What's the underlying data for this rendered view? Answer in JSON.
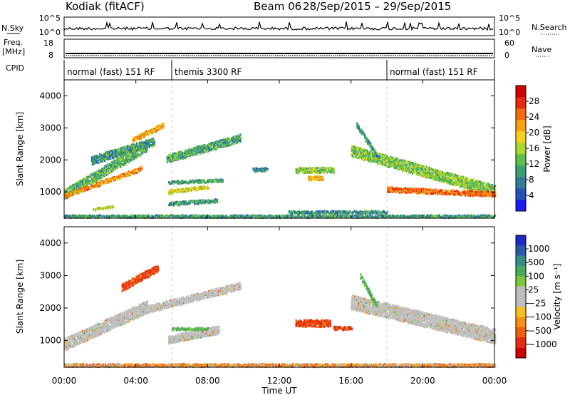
{
  "header": {
    "station": "Kodiak (fitACF)",
    "beam": "Beam 06",
    "date_range": "28/Sep/2015 – 29/Sep/2015"
  },
  "top_panels": {
    "nsky": {
      "label": "N.Sky",
      "tick_top": "10^5",
      "tick_bottom": "10^0"
    },
    "nsearch": {
      "label": "N.Search",
      "tick_top": "10^5",
      "tick_bottom": "10^0"
    },
    "freq": {
      "label_line1": "Freq.",
      "label_line2": "[MHz]",
      "tick_top": "18",
      "tick_bottom": "8"
    },
    "nave": {
      "label": "Nave",
      "tick_top": "60",
      "tick_bottom": "0"
    },
    "cpid": {
      "label": "CPID",
      "segments": [
        {
          "label": "normal (fast) 151 RF",
          "start_hour": 0,
          "end_hour": 6
        },
        {
          "label": "themis 3300 RF",
          "start_hour": 6,
          "end_hour": 18
        },
        {
          "label": "normal (fast) 151 RF",
          "start_hour": 18,
          "end_hour": 24
        }
      ]
    }
  },
  "power_colorbar": {
    "label": "Power [dB]",
    "ticks": [
      "4",
      "8",
      "12",
      "16",
      "20",
      "24",
      "28"
    ],
    "colors": [
      "#1c1cf0",
      "#2452b8",
      "#347c96",
      "#3aa070",
      "#5ec04a",
      "#a8d830",
      "#f4d21c",
      "#f8a010",
      "#f46a10",
      "#e82810",
      "#d00000"
    ]
  },
  "velocity_colorbar": {
    "label": "Velocity [m s⁻¹]",
    "ticks": [
      "1000",
      "500",
      "100",
      "25",
      "−25",
      "−100",
      "−500",
      "−1000"
    ],
    "colors": [
      "#1c28c8",
      "#2858a8",
      "#388c8c",
      "#4caa5c",
      "#7cc83c",
      "#bebebe",
      "#bebebe",
      "#f8c020",
      "#f49018",
      "#f06010",
      "#e02c10",
      "#cc0000"
    ]
  },
  "chart_data": [
    {
      "type": "heatmap",
      "title": "",
      "xlabel": "",
      "ylabel": "Slant Range [km]",
      "xlim": [
        0,
        24
      ],
      "ylim": [
        180,
        4500
      ],
      "yticks": [
        1000,
        2000,
        3000,
        4000
      ],
      "scatter_regions": [
        {
          "x0": 0.0,
          "x1": 4.6,
          "r_start": 950,
          "r_end": 2450,
          "width": 320,
          "value": 12
        },
        {
          "x0": 0.0,
          "x1": 4.3,
          "r_start": 900,
          "r_end": 1750,
          "width": 140,
          "value": 22
        },
        {
          "x0": 1.5,
          "x1": 5.0,
          "r_start": 2000,
          "r_end": 2600,
          "width": 260,
          "value": 10
        },
        {
          "x0": 3.8,
          "x1": 5.5,
          "r_start": 2650,
          "r_end": 3100,
          "width": 160,
          "value": 21
        },
        {
          "x0": 5.7,
          "x1": 9.8,
          "r_start": 2050,
          "r_end": 2700,
          "width": 250,
          "value": 11
        },
        {
          "x0": 5.8,
          "x1": 8.0,
          "r_start": 1020,
          "r_end": 1180,
          "width": 120,
          "value": 18
        },
        {
          "x0": 5.8,
          "x1": 8.8,
          "r_start": 1320,
          "r_end": 1380,
          "width": 100,
          "value": 11
        },
        {
          "x0": 5.8,
          "x1": 8.5,
          "r_start": 650,
          "r_end": 750,
          "width": 120,
          "value": 10
        },
        {
          "x0": 1.6,
          "x1": 2.7,
          "r_start": 480,
          "r_end": 560,
          "width": 70,
          "value": 18
        },
        {
          "x0": 10.5,
          "x1": 11.3,
          "r_start": 1720,
          "r_end": 1720,
          "width": 120,
          "value": 8
        },
        {
          "x0": 12.9,
          "x1": 15.0,
          "r_start": 1700,
          "r_end": 1700,
          "width": 180,
          "value": 14
        },
        {
          "x0": 13.6,
          "x1": 14.4,
          "r_start": 1450,
          "r_end": 1450,
          "width": 140,
          "value": 21
        },
        {
          "x0": 12.5,
          "x1": 18.0,
          "r_start": 390,
          "r_end": 390,
          "width": 90,
          "value": 9
        },
        {
          "x0": 16.0,
          "x1": 24.0,
          "r_start": 2300,
          "r_end": 1050,
          "width": 350,
          "value": 14
        },
        {
          "x0": 18.0,
          "x1": 24.0,
          "r_start": 1100,
          "r_end": 950,
          "width": 160,
          "value": 25
        },
        {
          "x0": 16.3,
          "x1": 17.5,
          "r_start": 3100,
          "r_end": 2100,
          "width": 150,
          "value": 10
        },
        {
          "x0": 0.0,
          "x1": 24.0,
          "r_start": 260,
          "r_end": 260,
          "width": 90,
          "value": 10
        }
      ]
    },
    {
      "type": "heatmap",
      "title": "",
      "xlabel": "Time UT",
      "ylabel": "Slant Range [km]",
      "xlim": [
        0,
        24
      ],
      "ylim": [
        180,
        4500
      ],
      "yticks": [
        1000,
        2000,
        3000,
        4000
      ],
      "xticks": [
        "00:00",
        "04:00",
        "08:00",
        "12:00",
        "16:00",
        "20:00",
        "00:00"
      ],
      "scatter_regions": [
        {
          "x0": 0.0,
          "x1": 4.6,
          "r_start": 900,
          "r_end": 2050,
          "width": 380,
          "value": 0
        },
        {
          "x0": 3.2,
          "x1": 5.2,
          "r_start": 2650,
          "r_end": 3250,
          "width": 230,
          "value": -300
        },
        {
          "x0": 4.4,
          "x1": 9.8,
          "r_start": 1950,
          "r_end": 2700,
          "width": 230,
          "value": 0
        },
        {
          "x0": 5.8,
          "x1": 8.6,
          "r_start": 1050,
          "r_end": 1350,
          "width": 250,
          "value": 0
        },
        {
          "x0": 6.0,
          "x1": 8.0,
          "r_start": 1380,
          "r_end": 1380,
          "width": 80,
          "value": 150
        },
        {
          "x0": 12.9,
          "x1": 14.8,
          "r_start": 1550,
          "r_end": 1550,
          "width": 220,
          "value": -300
        },
        {
          "x0": 15.0,
          "x1": 16.0,
          "r_start": 1400,
          "r_end": 1400,
          "width": 120,
          "value": -300
        },
        {
          "x0": 16.0,
          "x1": 24.0,
          "r_start": 2200,
          "r_end": 1150,
          "width": 450,
          "value": 0
        },
        {
          "x0": 16.5,
          "x1": 17.4,
          "r_start": 3000,
          "r_end": 2100,
          "width": 150,
          "value": 150
        },
        {
          "x0": 0.0,
          "x1": 24.0,
          "r_start": 260,
          "r_end": 260,
          "width": 100,
          "value": -60
        }
      ]
    }
  ]
}
